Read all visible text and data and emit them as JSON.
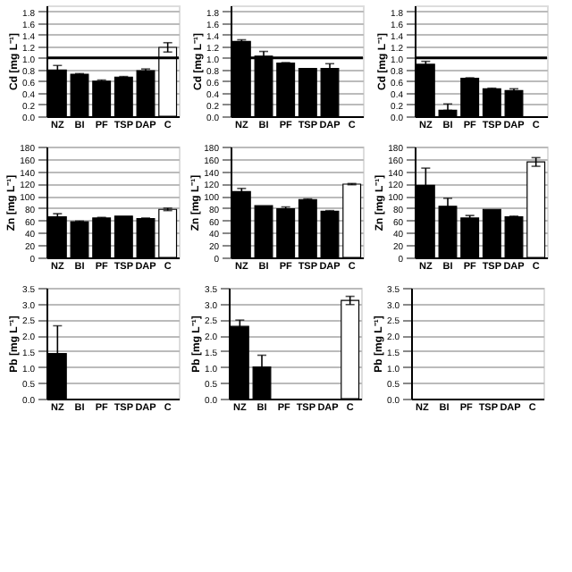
{
  "chart_data": [
    {
      "type": "bar",
      "ylabel": "Cd [mg L⁻¹]",
      "categories": [
        "NZ",
        "BI",
        "PF",
        "TSP",
        "DAP",
        "C"
      ],
      "values": [
        0.79,
        0.72,
        0.6,
        0.67,
        0.78,
        1.18
      ],
      "errors": [
        0.08,
        0.01,
        0.02,
        0.01,
        0.03,
        0.08
      ],
      "colors": [
        "#000000",
        "#000000",
        "#000000",
        "#000000",
        "#000000",
        "#ffffff"
      ],
      "ylim": [
        0,
        1.9
      ],
      "yticks": [
        {
          "value": 0,
          "label": "0.0"
        },
        0.2,
        0.4,
        0.6,
        0.8,
        {
          "value": 1,
          "label": "1.0"
        },
        1.2,
        1.4,
        1.6,
        1.8
      ],
      "grid": "y",
      "ref_lines": [
        {
          "axis": "y",
          "value": 1.0,
          "color": "#000000"
        }
      ]
    },
    {
      "type": "bar",
      "ylabel": "Cd [mg L⁻¹]",
      "categories": [
        "NZ",
        "BI",
        "PF",
        "TSP",
        "DAP",
        "C"
      ],
      "values": [
        1.28,
        1.03,
        0.91,
        0.82,
        0.82,
        null
      ],
      "errors": [
        0.03,
        0.08,
        0.01,
        null,
        0.08,
        null
      ],
      "colors": [
        "#000000",
        "#000000",
        "#000000",
        "#000000",
        "#000000",
        "#ffffff"
      ],
      "ylim": [
        0,
        1.9
      ],
      "yticks": [
        {
          "value": 0,
          "label": "0.0"
        },
        0.2,
        0.4,
        0.6,
        0.8,
        {
          "value": 1,
          "label": "1.0"
        },
        1.2,
        1.4,
        1.6,
        1.8
      ],
      "grid": "y",
      "ref_lines": [
        {
          "axis": "y",
          "value": 1.0,
          "color": "#000000"
        }
      ]
    },
    {
      "type": "bar",
      "ylabel": "Cd [mg L⁻¹]",
      "categories": [
        "NZ",
        "BI",
        "PF",
        "TSP",
        "DAP",
        "C"
      ],
      "values": [
        0.89,
        0.1,
        0.65,
        0.47,
        0.44,
        null
      ],
      "errors": [
        0.05,
        [
          0.1,
          0.21
        ],
        0.01,
        0.01,
        0.03,
        null
      ],
      "colors": [
        "#000000",
        "#000000",
        "#000000",
        "#000000",
        "#000000",
        "#ffffff"
      ],
      "ylim": [
        0,
        1.9
      ],
      "yticks": [
        {
          "value": 0,
          "label": "0.0"
        },
        0.2,
        0.4,
        0.6,
        0.8,
        {
          "value": 1,
          "label": "1.0"
        },
        1.2,
        1.4,
        1.6,
        1.8
      ],
      "grid": "y",
      "ref_lines": [
        {
          "axis": "y",
          "value": 1.0,
          "color": "#000000"
        }
      ]
    },
    {
      "type": "bar",
      "ylabel": "Zn [mg L⁻¹]",
      "categories": [
        "NZ",
        "BI",
        "PF",
        "TSP",
        "DAP",
        "C"
      ],
      "values": [
        66,
        58,
        64,
        67,
        63,
        78
      ],
      "errors": [
        5,
        1,
        1,
        null,
        1,
        2
      ],
      "colors": [
        "#000000",
        "#000000",
        "#000000",
        "#000000",
        "#000000",
        "#ffffff"
      ],
      "ylim": [
        0,
        180
      ],
      "yticks": [
        0,
        20,
        40,
        60,
        80,
        100,
        120,
        140,
        160,
        180
      ],
      "grid": "y"
    },
    {
      "type": "bar",
      "ylabel": "Zn [mg L⁻¹]",
      "categories": [
        "NZ",
        "BI",
        "PF",
        "TSP",
        "DAP",
        "C"
      ],
      "values": [
        107,
        84,
        79,
        94,
        75,
        119
      ],
      "errors": [
        5,
        null,
        3,
        1,
        1,
        1
      ],
      "colors": [
        "#000000",
        "#000000",
        "#000000",
        "#000000",
        "#000000",
        "#ffffff"
      ],
      "ylim": [
        0,
        180
      ],
      "yticks": [
        0,
        20,
        40,
        60,
        80,
        100,
        120,
        140,
        160,
        180
      ],
      "grid": "y"
    },
    {
      "type": "bar",
      "ylabel": "Zn [mg L⁻¹]",
      "categories": [
        "NZ",
        "BI",
        "PF",
        "TSP",
        "DAP",
        "C"
      ],
      "values": [
        117,
        83,
        64,
        78,
        66,
        155
      ],
      "errors": [
        28,
        13,
        4,
        null,
        1,
        7
      ],
      "colors": [
        "#000000",
        "#000000",
        "#000000",
        "#000000",
        "#000000",
        "#ffffff"
      ],
      "ylim": [
        0,
        180
      ],
      "yticks": [
        0,
        20,
        40,
        60,
        80,
        100,
        120,
        140,
        160,
        180
      ],
      "grid": "y"
    },
    {
      "type": "bar",
      "ylabel": "Pb [mg L⁻¹]",
      "categories": [
        "NZ",
        "BI",
        "PF",
        "TSP",
        "DAP",
        "C"
      ],
      "values": [
        1.42,
        null,
        null,
        null,
        null,
        null
      ],
      "errors": [
        0.88,
        null,
        null,
        null,
        null,
        null
      ],
      "colors": [
        "#000000",
        "#000000",
        "#000000",
        "#000000",
        "#000000",
        "#ffffff"
      ],
      "ylim": [
        0,
        3.5
      ],
      "yticks": [
        {
          "value": 0,
          "label": "0.0"
        },
        0.5,
        {
          "value": 1,
          "label": "1.0"
        },
        1.5,
        {
          "value": 2,
          "label": "2.0"
        },
        2.5,
        {
          "value": 3,
          "label": "3.0"
        },
        3.5
      ],
      "grid": "y"
    },
    {
      "type": "bar",
      "ylabel": "Pb [mg L⁻¹]",
      "categories": [
        "NZ",
        "BI",
        "PF",
        "TSP",
        "DAP",
        "C"
      ],
      "values": [
        2.28,
        1.0,
        null,
        null,
        null,
        3.1
      ],
      "errors": [
        0.2,
        0.37,
        null,
        null,
        null,
        0.13
      ],
      "colors": [
        "#000000",
        "#000000",
        "#000000",
        "#000000",
        "#000000",
        "#ffffff"
      ],
      "ylim": [
        0,
        3.5
      ],
      "yticks": [
        {
          "value": 0,
          "label": "0.0"
        },
        0.5,
        {
          "value": 1,
          "label": "1.0"
        },
        1.5,
        {
          "value": 2,
          "label": "2.0"
        },
        2.5,
        {
          "value": 3,
          "label": "3.0"
        },
        3.5
      ],
      "grid": "y"
    },
    {
      "type": "bar",
      "ylabel": "Pb [mg L⁻¹]",
      "categories": [
        "NZ",
        "BI",
        "PF",
        "TSP",
        "DAP",
        "C"
      ],
      "values": [
        null,
        null,
        null,
        null,
        null,
        null
      ],
      "ylim": [
        0,
        3.5
      ],
      "yticks": [
        {
          "value": 0,
          "label": "0.0"
        },
        0.5,
        {
          "value": 1,
          "label": "1.0"
        },
        1.5,
        {
          "value": 2,
          "label": "2.0"
        },
        2.5,
        {
          "value": 3,
          "label": "3.0"
        },
        3.5
      ],
      "grid": "y"
    }
  ]
}
